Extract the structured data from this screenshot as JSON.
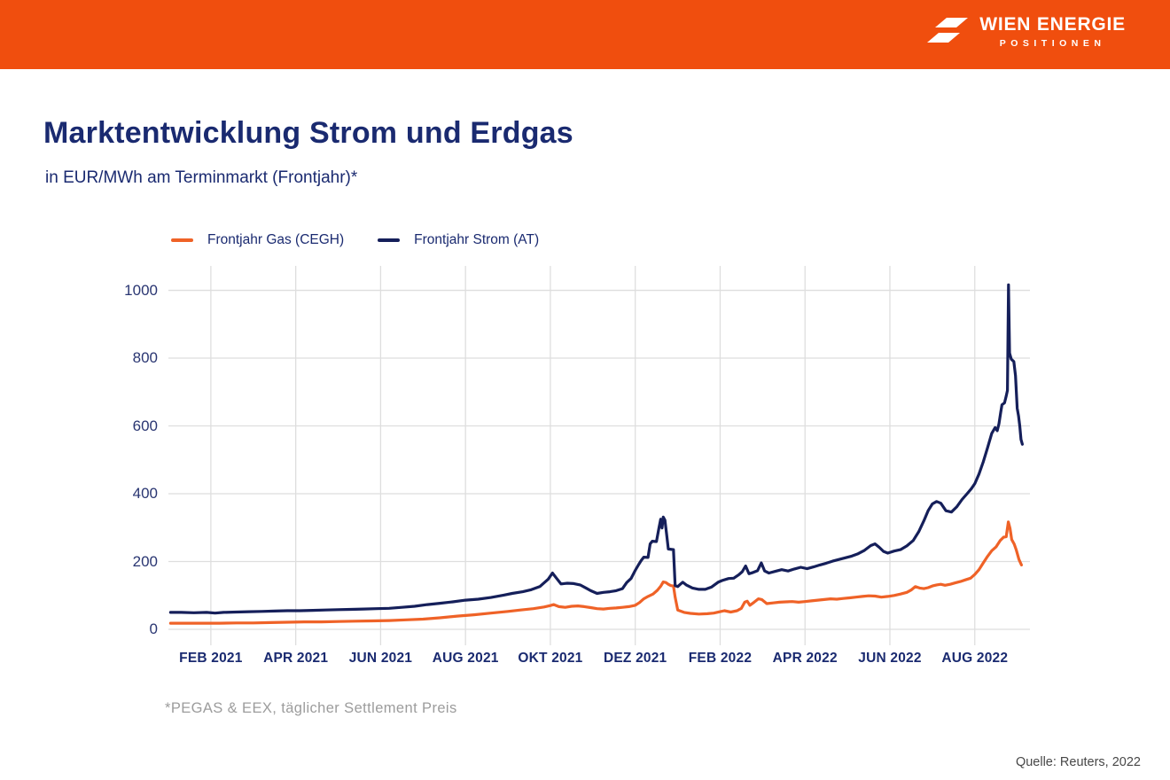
{
  "header": {
    "brand": "WIEN ENERGIE",
    "brand_sub": "POSITIONEN",
    "bar_color": "#F04E0E"
  },
  "title": "Marktentwicklung Strom und Erdgas",
  "subtitle": "in EUR/MWh am Terminmarkt (Frontjahr)*",
  "footnote": "*PEGAS & EEX, täglicher Settlement Preis",
  "source": "Quelle: Reuters, 2022",
  "colors": {
    "gas_line": "#EF6227",
    "strom_line": "#151F5A",
    "grid": "#DEDEDE",
    "text_navy": "#1A2A70"
  },
  "chart_data": {
    "type": "line",
    "title": "Marktentwicklung Strom und Erdgas",
    "ylabel": "EUR/MWh (Terminmarkt, Frontjahr)",
    "xlabel": "",
    "grid": true,
    "legend_position": "top-left",
    "x_unit": "months since Jan 2021",
    "xlim": [
      0,
      20.3
    ],
    "ylim": [
      0,
      1000
    ],
    "x_map": [
      0,
      20.3
    ],
    "y_map": [
      -47,
      1072
    ],
    "yticks": [
      0,
      200,
      400,
      600,
      800,
      1000
    ],
    "x_ticks": [
      {
        "month": 1,
        "label": "FEB 2021"
      },
      {
        "month": 3,
        "label": "APR 2021"
      },
      {
        "month": 5,
        "label": "JUN 2021"
      },
      {
        "month": 7,
        "label": "AUG 2021"
      },
      {
        "month": 9,
        "label": "OKT 2021"
      },
      {
        "month": 11,
        "label": "DEZ 2021"
      },
      {
        "month": 13,
        "label": "FEB 2022"
      },
      {
        "month": 15,
        "label": "APR 2022"
      },
      {
        "month": 17,
        "label": "JUN 2022"
      },
      {
        "month": 19,
        "label": "AUG 2022"
      }
    ],
    "series": [
      {
        "name": "Frontjahr Gas (CEGH)",
        "color": "#EF6227",
        "points": [
          [
            0.05,
            18
          ],
          [
            0.4,
            18
          ],
          [
            0.8,
            18
          ],
          [
            1.2,
            18
          ],
          [
            1.6,
            19
          ],
          [
            2.0,
            19
          ],
          [
            2.4,
            20
          ],
          [
            2.8,
            21
          ],
          [
            3.2,
            22
          ],
          [
            3.6,
            22
          ],
          [
            4.0,
            23
          ],
          [
            4.4,
            24
          ],
          [
            4.8,
            25
          ],
          [
            5.2,
            26
          ],
          [
            5.6,
            28
          ],
          [
            6.0,
            30
          ],
          [
            6.4,
            34
          ],
          [
            6.8,
            39
          ],
          [
            7.2,
            43
          ],
          [
            7.6,
            48
          ],
          [
            8.0,
            53
          ],
          [
            8.3,
            57
          ],
          [
            8.6,
            61
          ],
          [
            8.85,
            66
          ],
          [
            9.0,
            70
          ],
          [
            9.08,
            73
          ],
          [
            9.2,
            67
          ],
          [
            9.35,
            65
          ],
          [
            9.5,
            68
          ],
          [
            9.65,
            69
          ],
          [
            9.8,
            67
          ],
          [
            9.95,
            64
          ],
          [
            10.1,
            61
          ],
          [
            10.25,
            60
          ],
          [
            10.4,
            62
          ],
          [
            10.55,
            63
          ],
          [
            10.7,
            65
          ],
          [
            10.85,
            67
          ],
          [
            11.0,
            71
          ],
          [
            11.1,
            79
          ],
          [
            11.2,
            90
          ],
          [
            11.3,
            97
          ],
          [
            11.42,
            104
          ],
          [
            11.52,
            115
          ],
          [
            11.6,
            127
          ],
          [
            11.66,
            140
          ],
          [
            11.72,
            138
          ],
          [
            11.78,
            133
          ],
          [
            11.84,
            129
          ],
          [
            11.9,
            128
          ],
          [
            11.94,
            95
          ],
          [
            12.0,
            57
          ],
          [
            12.15,
            50
          ],
          [
            12.3,
            47
          ],
          [
            12.5,
            45
          ],
          [
            12.7,
            46
          ],
          [
            12.85,
            48
          ],
          [
            13.0,
            52
          ],
          [
            13.1,
            55
          ],
          [
            13.25,
            51
          ],
          [
            13.4,
            55
          ],
          [
            13.5,
            62
          ],
          [
            13.58,
            80
          ],
          [
            13.64,
            83
          ],
          [
            13.7,
            71
          ],
          [
            13.8,
            80
          ],
          [
            13.9,
            90
          ],
          [
            13.98,
            88
          ],
          [
            14.1,
            76
          ],
          [
            14.25,
            78
          ],
          [
            14.4,
            80
          ],
          [
            14.55,
            81
          ],
          [
            14.7,
            82
          ],
          [
            14.85,
            80
          ],
          [
            15.0,
            82
          ],
          [
            15.15,
            84
          ],
          [
            15.3,
            86
          ],
          [
            15.45,
            88
          ],
          [
            15.6,
            90
          ],
          [
            15.75,
            89
          ],
          [
            15.9,
            91
          ],
          [
            16.05,
            93
          ],
          [
            16.2,
            95
          ],
          [
            16.35,
            97
          ],
          [
            16.5,
            99
          ],
          [
            16.65,
            98
          ],
          [
            16.8,
            95
          ],
          [
            16.95,
            97
          ],
          [
            17.1,
            100
          ],
          [
            17.25,
            104
          ],
          [
            17.4,
            109
          ],
          [
            17.5,
            116
          ],
          [
            17.6,
            126
          ],
          [
            17.7,
            122
          ],
          [
            17.8,
            120
          ],
          [
            17.9,
            123
          ],
          [
            18.0,
            128
          ],
          [
            18.1,
            131
          ],
          [
            18.2,
            133
          ],
          [
            18.3,
            130
          ],
          [
            18.42,
            133
          ],
          [
            18.54,
            137
          ],
          [
            18.66,
            141
          ],
          [
            18.78,
            146
          ],
          [
            18.9,
            151
          ],
          [
            19.0,
            162
          ],
          [
            19.1,
            176
          ],
          [
            19.2,
            196
          ],
          [
            19.3,
            215
          ],
          [
            19.4,
            232
          ],
          [
            19.5,
            243
          ],
          [
            19.6,
            262
          ],
          [
            19.68,
            272
          ],
          [
            19.74,
            273
          ],
          [
            19.79,
            317
          ],
          [
            19.83,
            298
          ],
          [
            19.87,
            265
          ],
          [
            19.93,
            251
          ],
          [
            19.98,
            233
          ],
          [
            20.04,
            206
          ],
          [
            20.1,
            190
          ]
        ]
      },
      {
        "name": "Frontjahr Strom (AT)",
        "color": "#151F5A",
        "points": [
          [
            0.05,
            50
          ],
          [
            0.3,
            50
          ],
          [
            0.6,
            49
          ],
          [
            0.9,
            50
          ],
          [
            1.1,
            48
          ],
          [
            1.3,
            50
          ],
          [
            1.6,
            51
          ],
          [
            1.9,
            52
          ],
          [
            2.2,
            53
          ],
          [
            2.5,
            54
          ],
          [
            2.8,
            55
          ],
          [
            3.1,
            55
          ],
          [
            3.4,
            56
          ],
          [
            3.7,
            57
          ],
          [
            4.0,
            58
          ],
          [
            4.3,
            59
          ],
          [
            4.6,
            60
          ],
          [
            4.9,
            61
          ],
          [
            5.2,
            62
          ],
          [
            5.5,
            65
          ],
          [
            5.8,
            68
          ],
          [
            6.1,
            73
          ],
          [
            6.4,
            77
          ],
          [
            6.7,
            81
          ],
          [
            7.0,
            86
          ],
          [
            7.3,
            89
          ],
          [
            7.6,
            94
          ],
          [
            7.9,
            101
          ],
          [
            8.1,
            106
          ],
          [
            8.35,
            111
          ],
          [
            8.55,
            117
          ],
          [
            8.75,
            126
          ],
          [
            8.95,
            148
          ],
          [
            9.05,
            166
          ],
          [
            9.15,
            150
          ],
          [
            9.25,
            134
          ],
          [
            9.4,
            136
          ],
          [
            9.55,
            135
          ],
          [
            9.7,
            131
          ],
          [
            9.85,
            121
          ],
          [
            9.95,
            114
          ],
          [
            10.1,
            106
          ],
          [
            10.25,
            109
          ],
          [
            10.4,
            111
          ],
          [
            10.55,
            114
          ],
          [
            10.7,
            120
          ],
          [
            10.8,
            138
          ],
          [
            10.9,
            150
          ],
          [
            11.0,
            174
          ],
          [
            11.08,
            191
          ],
          [
            11.14,
            203
          ],
          [
            11.2,
            213
          ],
          [
            11.3,
            212
          ],
          [
            11.35,
            252
          ],
          [
            11.4,
            260
          ],
          [
            11.5,
            259
          ],
          [
            11.56,
            300
          ],
          [
            11.6,
            325
          ],
          [
            11.63,
            299
          ],
          [
            11.66,
            331
          ],
          [
            11.7,
            322
          ],
          [
            11.74,
            280
          ],
          [
            11.78,
            237
          ],
          [
            11.9,
            235
          ],
          [
            11.94,
            129
          ],
          [
            12.0,
            126
          ],
          [
            12.06,
            133
          ],
          [
            12.12,
            139
          ],
          [
            12.2,
            131
          ],
          [
            12.35,
            122
          ],
          [
            12.5,
            118
          ],
          [
            12.65,
            118
          ],
          [
            12.8,
            125
          ],
          [
            12.95,
            139
          ],
          [
            13.05,
            144
          ],
          [
            13.2,
            150
          ],
          [
            13.32,
            151
          ],
          [
            13.44,
            161
          ],
          [
            13.52,
            170
          ],
          [
            13.6,
            187
          ],
          [
            13.68,
            164
          ],
          [
            13.78,
            168
          ],
          [
            13.88,
            173
          ],
          [
            13.97,
            196
          ],
          [
            14.05,
            172
          ],
          [
            14.15,
            166
          ],
          [
            14.3,
            171
          ],
          [
            14.45,
            176
          ],
          [
            14.6,
            172
          ],
          [
            14.75,
            178
          ],
          [
            14.9,
            183
          ],
          [
            15.05,
            179
          ],
          [
            15.2,
            184
          ],
          [
            15.35,
            190
          ],
          [
            15.5,
            195
          ],
          [
            15.65,
            201
          ],
          [
            15.8,
            206
          ],
          [
            15.95,
            211
          ],
          [
            16.1,
            216
          ],
          [
            16.25,
            223
          ],
          [
            16.4,
            233
          ],
          [
            16.55,
            247
          ],
          [
            16.65,
            252
          ],
          [
            16.75,
            242
          ],
          [
            16.85,
            230
          ],
          [
            16.95,
            225
          ],
          [
            17.1,
            231
          ],
          [
            17.25,
            235
          ],
          [
            17.4,
            246
          ],
          [
            17.55,
            262
          ],
          [
            17.68,
            288
          ],
          [
            17.8,
            320
          ],
          [
            17.9,
            350
          ],
          [
            18.0,
            370
          ],
          [
            18.1,
            377
          ],
          [
            18.2,
            372
          ],
          [
            18.32,
            350
          ],
          [
            18.45,
            346
          ],
          [
            18.58,
            362
          ],
          [
            18.7,
            383
          ],
          [
            18.82,
            400
          ],
          [
            18.92,
            415
          ],
          [
            19.0,
            430
          ],
          [
            19.1,
            458
          ],
          [
            19.2,
            494
          ],
          [
            19.3,
            535
          ],
          [
            19.4,
            578
          ],
          [
            19.48,
            595
          ],
          [
            19.53,
            586
          ],
          [
            19.57,
            606
          ],
          [
            19.61,
            640
          ],
          [
            19.64,
            662
          ],
          [
            19.7,
            668
          ],
          [
            19.74,
            688
          ],
          [
            19.77,
            705
          ],
          [
            19.795,
            1016
          ],
          [
            19.82,
            815
          ],
          [
            19.86,
            797
          ],
          [
            19.92,
            790
          ],
          [
            19.96,
            748
          ],
          [
            20.0,
            652
          ],
          [
            20.03,
            630
          ],
          [
            20.06,
            600
          ],
          [
            20.09,
            560
          ],
          [
            20.12,
            546
          ]
        ]
      }
    ]
  }
}
